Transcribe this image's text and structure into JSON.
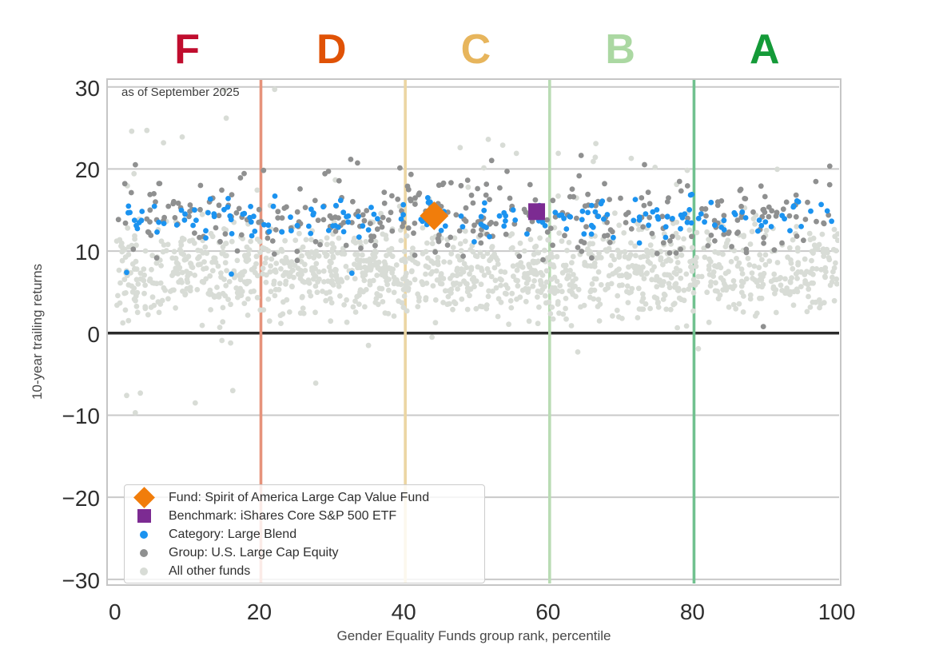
{
  "chart_data": {
    "type": "scatter",
    "annotation": "as of September 2025",
    "xlabel": "Gender Equality Funds group rank, percentile",
    "ylabel": "10-year trailing returns",
    "xlim": [
      -1.2,
      100.1
    ],
    "ylim": [
      -30.5,
      30.85
    ],
    "xticks": [
      0,
      20,
      40,
      60,
      80,
      100
    ],
    "yticks": [
      30,
      20,
      10,
      0,
      -10,
      -20,
      -30
    ],
    "grid_color": "#c9c9c9",
    "zero_line_color": "#2b2b2b",
    "grades": [
      {
        "label": "F",
        "x": 10,
        "color": "#c00d2e"
      },
      {
        "label": "D",
        "x": 30,
        "color": "#e05206"
      },
      {
        "label": "C",
        "x": 50,
        "color": "#e7b55c"
      },
      {
        "label": "B",
        "x": 70,
        "color": "#abd8a2"
      },
      {
        "label": "A",
        "x": 90,
        "color": "#149a38"
      }
    ],
    "grade_lines": [
      {
        "x": 20,
        "color": "#e6937b"
      },
      {
        "x": 40,
        "color": "#ecd6a3"
      },
      {
        "x": 60,
        "color": "#b9dcb4"
      },
      {
        "x": 80,
        "color": "#71c18f"
      }
    ],
    "series": [
      {
        "name": "All other funds",
        "color": "#d8dcd6",
        "radius": 3.4,
        "generate": {
          "seed": 20250901,
          "n": 1300,
          "x_min": 0,
          "x_max": 100,
          "y_mean": 7.4,
          "y_std": 2.7,
          "y_min": 0.6,
          "y_max": 13.8
        },
        "tail": {
          "seed": 7701,
          "n": 38,
          "x_min": 1,
          "x_max": 100,
          "y_min": 13.5,
          "y_max": 21.5,
          "bias": 2.2
        },
        "outliers": [
          [
            1.4,
            -7.6
          ],
          [
            2.6,
            -9.7
          ],
          [
            3.3,
            -7.3
          ],
          [
            10.9,
            -8.5
          ],
          [
            14.6,
            -0.9
          ],
          [
            15.8,
            -1.2
          ],
          [
            16.1,
            -7.0
          ],
          [
            27.6,
            -6.1
          ],
          [
            34.9,
            -1.5
          ],
          [
            43.7,
            -0.5
          ],
          [
            63.9,
            -2.3
          ],
          [
            80.6,
            -1.9
          ],
          [
            15.0,
            29.6
          ],
          [
            21.9,
            29.7
          ],
          [
            15.2,
            26.2
          ],
          [
            2.1,
            24.6
          ],
          [
            4.2,
            24.7
          ],
          [
            6.5,
            23.2
          ],
          [
            9.1,
            23.9
          ],
          [
            47.6,
            22.6
          ],
          [
            51.5,
            23.6
          ],
          [
            53.5,
            22.9
          ],
          [
            55.4,
            21.9
          ],
          [
            66.4,
            23.1
          ],
          [
            71.3,
            21.3
          ],
          [
            74.6,
            20.2
          ],
          [
            61.2,
            21.9
          ]
        ]
      },
      {
        "name": "Group: U.S. Large Cap Equity",
        "color": "#8f9090",
        "radius": 3.4,
        "generate": {
          "seed": 424242,
          "n": 340,
          "x_min": 0,
          "x_max": 100,
          "y_mean": 14.2,
          "y_std": 2.6,
          "y_min": 8.8,
          "y_max": 21.8
        },
        "outliers": [
          [
            89.6,
            0.8
          ]
        ]
      },
      {
        "name": "Category: Large Blend",
        "color": "#1b93f0",
        "radius": 3.4,
        "generate": {
          "seed": 9907,
          "n": 190,
          "x_min": 0,
          "x_max": 100,
          "y_mean": 13.9,
          "y_std": 1.25,
          "y_min": 10.9,
          "y_max": 16.9
        },
        "outliers": [
          [
            79.7,
            16.9
          ],
          [
            1.4,
            7.4
          ],
          [
            15.9,
            7.2
          ],
          [
            32.6,
            7.3
          ]
        ]
      }
    ],
    "fund": {
      "name": "Fund: Spirit of America Large Cap Value Fund",
      "x": 44.0,
      "y": 14.3,
      "color": "#f17d0b",
      "marker": "diamond",
      "size": 36
    },
    "benchmark": {
      "name": "Benchmark: iShares Core S&P 500 ETF",
      "x": 58.2,
      "y": 14.8,
      "color": "#7c2b92",
      "marker": "square",
      "size": 21
    },
    "legend": {
      "items": [
        {
          "label": "Fund: Spirit of America Large Cap Value Fund",
          "marker": "diamond",
          "color": "#f17d0b"
        },
        {
          "label": "Benchmark: iShares Core S&P 500 ETF",
          "marker": "square",
          "color": "#7c2b92"
        },
        {
          "label": "Category: Large Blend",
          "marker": "dot",
          "color": "#1b93f0"
        },
        {
          "label": "Group: U.S. Large Cap Equity",
          "marker": "dot",
          "color": "#8f9090"
        },
        {
          "label": "All other funds",
          "marker": "dot",
          "color": "#d8dcd6"
        }
      ]
    }
  }
}
